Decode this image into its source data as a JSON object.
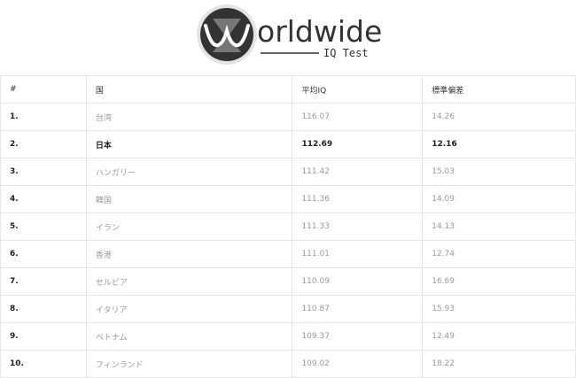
{
  "logo": {
    "text": "orldwide",
    "subtitle": "IQ Test"
  },
  "table": {
    "headers": [
      "#",
      "国",
      "平均IQ",
      "標準偏差"
    ],
    "rows": [
      {
        "rank": "1.",
        "country": "台湾",
        "iq": "116.07",
        "sd": "14.26"
      },
      {
        "rank": "2.",
        "country": "日本",
        "iq": "112.69",
        "sd": "12.16"
      },
      {
        "rank": "3.",
        "country": "ハンガリー",
        "iq": "111.42",
        "sd": "15.03"
      },
      {
        "rank": "4.",
        "country": "韓国",
        "iq": "111.36",
        "sd": "14.09"
      },
      {
        "rank": "5.",
        "country": "イラン",
        "iq": "111.33",
        "sd": "14.13"
      },
      {
        "rank": "6.",
        "country": "香港",
        "iq": "111.01",
        "sd": "12.74"
      },
      {
        "rank": "7.",
        "country": "セルビア",
        "iq": "110.09",
        "sd": "16.69"
      },
      {
        "rank": "8.",
        "country": "イタリア",
        "iq": "110.87",
        "sd": "15.93"
      },
      {
        "rank": "9.",
        "country": "ベトナム",
        "iq": "109.37",
        "sd": "12.49"
      },
      {
        "rank": "10.",
        "country": "フィンランド",
        "iq": "109.02",
        "sd": "18.22"
      }
    ]
  }
}
